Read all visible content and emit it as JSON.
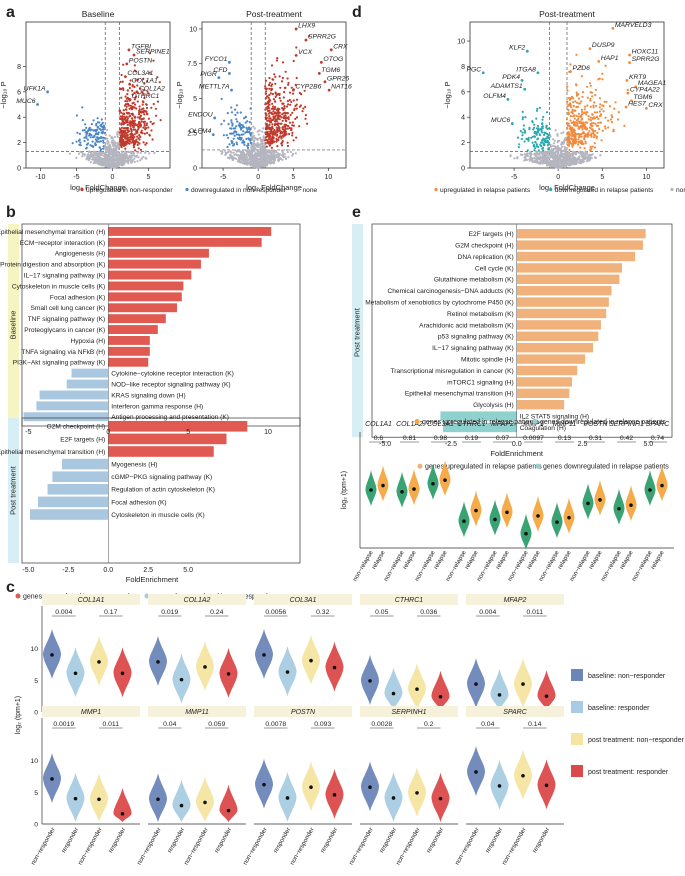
{
  "panel_labels": [
    "a",
    "b",
    "c",
    "d",
    "e",
    "f"
  ],
  "volcano": {
    "xlabel": "log₂ FoldChange",
    "ylabel": "−log₁₀ P",
    "legend_a": [
      "upregulated in non-responder",
      "downregulated in non-responder",
      "none"
    ],
    "legend_d": [
      "upregulated in relapse patients",
      "downregulated in relapse patients",
      "none"
    ],
    "colors": {
      "up_a": "#c0392b",
      "down_a": "#4a86c8",
      "none": "#b5b5c0",
      "up_d": "#f08a3c",
      "down_d": "#2aa8ad"
    }
  },
  "chart_data": [
    {
      "id": "a1",
      "type": "scatter",
      "title": "Baseline",
      "xlim": [
        -12,
        8
      ],
      "ylim": [
        0,
        11.5
      ],
      "xticks": [
        -10,
        -5,
        0,
        5
      ],
      "yticks": [
        0,
        2,
        4,
        6,
        8
      ],
      "labels": [
        {
          "text": "TGFBI",
          "x": 2.3,
          "y": 9.3
        },
        {
          "text": "SERPINE1",
          "x": 3.0,
          "y": 8.9
        },
        {
          "text": "POSTN",
          "x": 2.0,
          "y": 8.2
        },
        {
          "text": "COL3A1",
          "x": 1.8,
          "y": 7.2
        },
        {
          "text": "COL1A1",
          "x": 2.4,
          "y": 6.6
        },
        {
          "text": "COL1A2",
          "x": 3.4,
          "y": 6.0
        },
        {
          "text": "CTHRC1",
          "x": 2.4,
          "y": 5.4
        },
        {
          "text": "UFK1A",
          "x": -9.0,
          "y": 6.0
        },
        {
          "text": "MUC6",
          "x": -10.4,
          "y": 5.0
        }
      ]
    },
    {
      "id": "a2",
      "type": "scatter",
      "title": "Post-treatment",
      "xlim": [
        -8,
        12.5
      ],
      "ylim": [
        0,
        10.5
      ],
      "xticks": [
        -5,
        0,
        5,
        10
      ],
      "yticks": [
        0,
        2.5,
        5,
        7.5,
        10
      ],
      "labels": [
        {
          "text": "LHX9",
          "x": 5.4,
          "y": 10.0
        },
        {
          "text": "SPRR2G",
          "x": 6.8,
          "y": 9.2
        },
        {
          "text": "CRX",
          "x": 10.4,
          "y": 8.5
        },
        {
          "text": "VCX",
          "x": 5.4,
          "y": 8.1
        },
        {
          "text": "OTOG",
          "x": 9.0,
          "y": 7.6
        },
        {
          "text": "TGM6",
          "x": 8.7,
          "y": 6.8
        },
        {
          "text": "GPR26",
          "x": 9.5,
          "y": 6.2
        },
        {
          "text": "NAT16",
          "x": 10.1,
          "y": 5.6
        },
        {
          "text": "CYP2B6",
          "x": 5.0,
          "y": 5.6
        },
        {
          "text": "FYCO1",
          "x": -4.1,
          "y": 7.6
        },
        {
          "text": "PIGR",
          "x": -5.6,
          "y": 6.5
        },
        {
          "text": "CFD",
          "x": -4.1,
          "y": 6.8
        },
        {
          "text": "METTL7A",
          "x": -3.8,
          "y": 5.6
        },
        {
          "text": "ENDOU",
          "x": -6.2,
          "y": 3.6
        },
        {
          "text": "OLFM4",
          "x": -6.4,
          "y": 2.4
        }
      ]
    },
    {
      "id": "d",
      "type": "scatter",
      "title": "Post-treatment",
      "xlim": [
        -10,
        12
      ],
      "ylim": [
        0,
        11.5
      ],
      "xticks": [
        -5,
        0,
        5,
        10
      ],
      "yticks": [
        0,
        2,
        4,
        6,
        8,
        10
      ],
      "labels": [
        {
          "text": "MARVELD3",
          "x": 6.2,
          "y": 11.0
        },
        {
          "text": "DUSP9",
          "x": 3.6,
          "y": 9.4
        },
        {
          "text": "HOXC11",
          "x": 8.1,
          "y": 8.9
        },
        {
          "text": "HAP1",
          "x": 4.6,
          "y": 8.4
        },
        {
          "text": "SPRR2G",
          "x": 8.1,
          "y": 8.3
        },
        {
          "text": "KLF2",
          "x": -3.5,
          "y": 9.2
        },
        {
          "text": "PGC",
          "x": -8.5,
          "y": 7.5
        },
        {
          "text": "ITGA8",
          "x": -2.3,
          "y": 7.5
        },
        {
          "text": "PZD6",
          "x": 1.4,
          "y": 7.6
        },
        {
          "text": "PDK4",
          "x": -4.1,
          "y": 6.9
        },
        {
          "text": "ADAMTS1",
          "x": -3.8,
          "y": 6.2
        },
        {
          "text": "OLFM4",
          "x": -5.7,
          "y": 5.4
        },
        {
          "text": "MUC6",
          "x": -5.2,
          "y": 3.5
        },
        {
          "text": "KRT9",
          "x": 7.8,
          "y": 6.9
        },
        {
          "text": "MAGEA1",
          "x": 8.8,
          "y": 6.4
        },
        {
          "text": "CYP4A22",
          "x": 7.9,
          "y": 5.9
        },
        {
          "text": "TGM6",
          "x": 8.3,
          "y": 5.3
        },
        {
          "text": "HES7",
          "x": 7.7,
          "y": 4.8
        },
        {
          "text": "CRX",
          "x": 10.0,
          "y": 4.7
        }
      ]
    },
    {
      "id": "b",
      "type": "bar",
      "xlabel": "FoldEnrichment",
      "xlim": [
        -5.4,
        12
      ],
      "xticks": [
        -5,
        0,
        5,
        10
      ],
      "legend": [
        "genes upregulated in non-responder",
        "genes downregulated in non-responder"
      ],
      "groups": [
        {
          "name": "Baseline",
          "bars": [
            {
              "label": "Epithelial mesenchymal transition (H)",
              "value": 10.2
            },
            {
              "label": "ECM−receptor interaction (K)",
              "value": 9.6
            },
            {
              "label": "Angiogenesis (H)",
              "value": 6.3
            },
            {
              "label": "Protein digestion and absorption (K)",
              "value": 5.8
            },
            {
              "label": "IL−17 signaling pathway (K)",
              "value": 5.2
            },
            {
              "label": "Cytoskeleton in muscle cells (K)",
              "value": 4.7
            },
            {
              "label": "Focal adhesion (K)",
              "value": 4.6
            },
            {
              "label": "Small cell lung cancer (K)",
              "value": 4.3
            },
            {
              "label": "TNF signaling pathway (K)",
              "value": 3.6
            },
            {
              "label": "Proteoglycans in cancer (K)",
              "value": 3.1
            },
            {
              "label": "Hypoxia (H)",
              "value": 2.6
            },
            {
              "label": "TNFA signaling via NFkB (H)",
              "value": 2.6
            },
            {
              "label": "PI3K−Akt signaling pathway (K)",
              "value": 2.5
            },
            {
              "label": "Cytokine−cytokine receptor interaction (K)",
              "value": -2.3
            },
            {
              "label": "NOD−like receptor signaling pathway (K)",
              "value": -2.6
            },
            {
              "label": "KRAS signaling down (H)",
              "value": -4.3
            },
            {
              "label": "Interferon gamma response (H)",
              "value": -4.5
            },
            {
              "label": "Antigen processing and presentation (K)",
              "value": -5.3
            }
          ]
        },
        {
          "name": "Post treatment",
          "bars": [
            {
              "label": "G2M checkpoint (H)",
              "value": 8.7
            },
            {
              "label": "E2F targets (H)",
              "value": 7.4
            },
            {
              "label": "Epithelial mesenchymal transition (H)",
              "value": 6.6
            },
            {
              "label": "Myogenesis (H)",
              "value": -2.9
            },
            {
              "label": "cGMP−PKG signaling pathway (K)",
              "value": -3.5
            },
            {
              "label": "Regulation of actin cytoskeleton (K)",
              "value": -3.8
            },
            {
              "label": "Focal adhesion (K)",
              "value": -4.4
            },
            {
              "label": "Cytoskeleton in muscle cells (K)",
              "value": -4.9
            }
          ]
        }
      ]
    },
    {
      "id": "e",
      "type": "bar",
      "xlabel": "FoldEnrichment",
      "xlim": [
        -5.5,
        5.9
      ],
      "xticks": [
        -5.0,
        -2.5,
        0.0,
        2.5,
        5.0
      ],
      "group": "Post treatment",
      "legend": [
        "genes upregulated in relapse patients",
        "genes downregulated in relapse patients"
      ],
      "bars": [
        {
          "label": "E2F targets (H)",
          "value": 4.9
        },
        {
          "label": "G2M checkpoint (H)",
          "value": 4.8
        },
        {
          "label": "DNA replication (K)",
          "value": 4.5
        },
        {
          "label": "Cell cycle (K)",
          "value": 4.0
        },
        {
          "label": "Glutathione metabolism (K)",
          "value": 3.9
        },
        {
          "label": "Chemical carcinogenesis−DNA adducts (K)",
          "value": 3.6
        },
        {
          "label": "Metabolism of xenobiotics by cytochrome P450 (K)",
          "value": 3.5
        },
        {
          "label": "Retinol metabolism (K)",
          "value": 3.4
        },
        {
          "label": "Arachidonic acid metabolism (K)",
          "value": 3.2
        },
        {
          "label": "p53 signaling pathway (K)",
          "value": 3.1
        },
        {
          "label": "IL−17 signaling pathway (K)",
          "value": 2.9
        },
        {
          "label": "Mitotic spindle (H)",
          "value": 2.6
        },
        {
          "label": "Transcriptional misregulation in cancer (K)",
          "value": 2.3
        },
        {
          "label": "mTORC1 signaling (H)",
          "value": 2.1
        },
        {
          "label": "Epithelial mesenchymal transition (H)",
          "value": 2.0
        },
        {
          "label": "Glycolysis (H)",
          "value": 1.8
        },
        {
          "label": "IL2 STAT5 signaling (H)",
          "value": -2.9
        },
        {
          "label": "Coagulation (H)",
          "value": -2.8
        }
      ]
    },
    {
      "id": "f",
      "type": "violin",
      "ylabel": "log₂ (tpm+1)",
      "ylim": [
        0,
        13
      ],
      "group_labels": [
        "non−relapse",
        "relapse"
      ],
      "colors": [
        "#2e9e6b",
        "#f5a640"
      ],
      "legend": [
        "genes upregulated in relapse patients",
        "genes downregulated in relapse patients"
      ],
      "genes": [
        {
          "name": "COL1A1",
          "p": "0.6",
          "means": [
            6.5,
            7.0
          ]
        },
        {
          "name": "COL1A2",
          "p": "0.81",
          "means": [
            6.3,
            6.6
          ]
        },
        {
          "name": "COL3A1",
          "p": "0.98",
          "means": [
            7.2,
            7.6
          ]
        },
        {
          "name": "CTHRC1",
          "p": "0.19",
          "means": [
            3.0,
            4.2
          ]
        },
        {
          "name": "MFAP2",
          "p": "0.07",
          "means": [
            3.2,
            4.0
          ]
        },
        {
          "name": "MMP1",
          "p": "0.0097",
          "means": [
            1.6,
            3.6
          ]
        },
        {
          "name": "MMP11",
          "p": "0.13",
          "means": [
            2.9,
            3.4
          ]
        },
        {
          "name": "POSTN",
          "p": "0.31",
          "means": [
            5.0,
            5.4
          ]
        },
        {
          "name": "SERPINH1",
          "p": "0.42",
          "means": [
            4.4,
            4.8
          ]
        },
        {
          "name": "SPARC",
          "p": "0.74",
          "means": [
            6.5,
            7.0
          ]
        }
      ]
    },
    {
      "id": "c",
      "type": "violin",
      "ylabel": "log₂ (tpm+1)",
      "ylim": [
        0,
        14.5
      ],
      "yticks": [
        0,
        5,
        10
      ],
      "group_labels": [
        "non−responder",
        "responder",
        "non−responder",
        "responder"
      ],
      "legend": [
        "baseline: non−responder",
        "baseline: responder",
        "post treatment: non−responder",
        "post treatment: responder"
      ],
      "colors": [
        "#6d86b8",
        "#a8cce3",
        "#f6e5a1",
        "#db4a4a"
      ],
      "genes": [
        {
          "name": "COL1A1",
          "p1": "0.004",
          "p2": "0.17",
          "means": [
            9.0,
            6.1,
            7.9,
            6.1
          ]
        },
        {
          "name": "COL1A2",
          "p1": "0.019",
          "p2": "0.24",
          "means": [
            7.9,
            5.1,
            7.1,
            6.0
          ]
        },
        {
          "name": "COL3A1",
          "p1": "0.0056",
          "p2": "0.32",
          "means": [
            9.0,
            6.3,
            8.1,
            7.0
          ]
        },
        {
          "name": "CTHRC1",
          "p1": "0.05",
          "p2": "0.036",
          "means": [
            4.9,
            2.9,
            3.6,
            2.4
          ]
        },
        {
          "name": "MFAP2",
          "p1": "0.004",
          "p2": "0.011",
          "means": [
            4.4,
            2.7,
            4.4,
            2.5
          ]
        },
        {
          "name": "MMP1",
          "p1": "0.0019",
          "p2": "0.011",
          "means": [
            7.1,
            4.0,
            3.9,
            1.6
          ]
        },
        {
          "name": "MMP11",
          "p1": "0.04",
          "p2": "0.059",
          "means": [
            3.9,
            2.9,
            3.4,
            2.1
          ]
        },
        {
          "name": "POSTN",
          "p1": "0.0078",
          "p2": "0.093",
          "means": [
            6.2,
            4.1,
            5.8,
            4.6
          ]
        },
        {
          "name": "SERPINH1",
          "p1": "0.0028",
          "p2": "0.2",
          "means": [
            5.8,
            4.1,
            4.9,
            4.0
          ]
        },
        {
          "name": "SPARC",
          "p1": "0.04",
          "p2": "0.14",
          "means": [
            8.2,
            6.0,
            7.6,
            6.1
          ]
        }
      ]
    }
  ]
}
